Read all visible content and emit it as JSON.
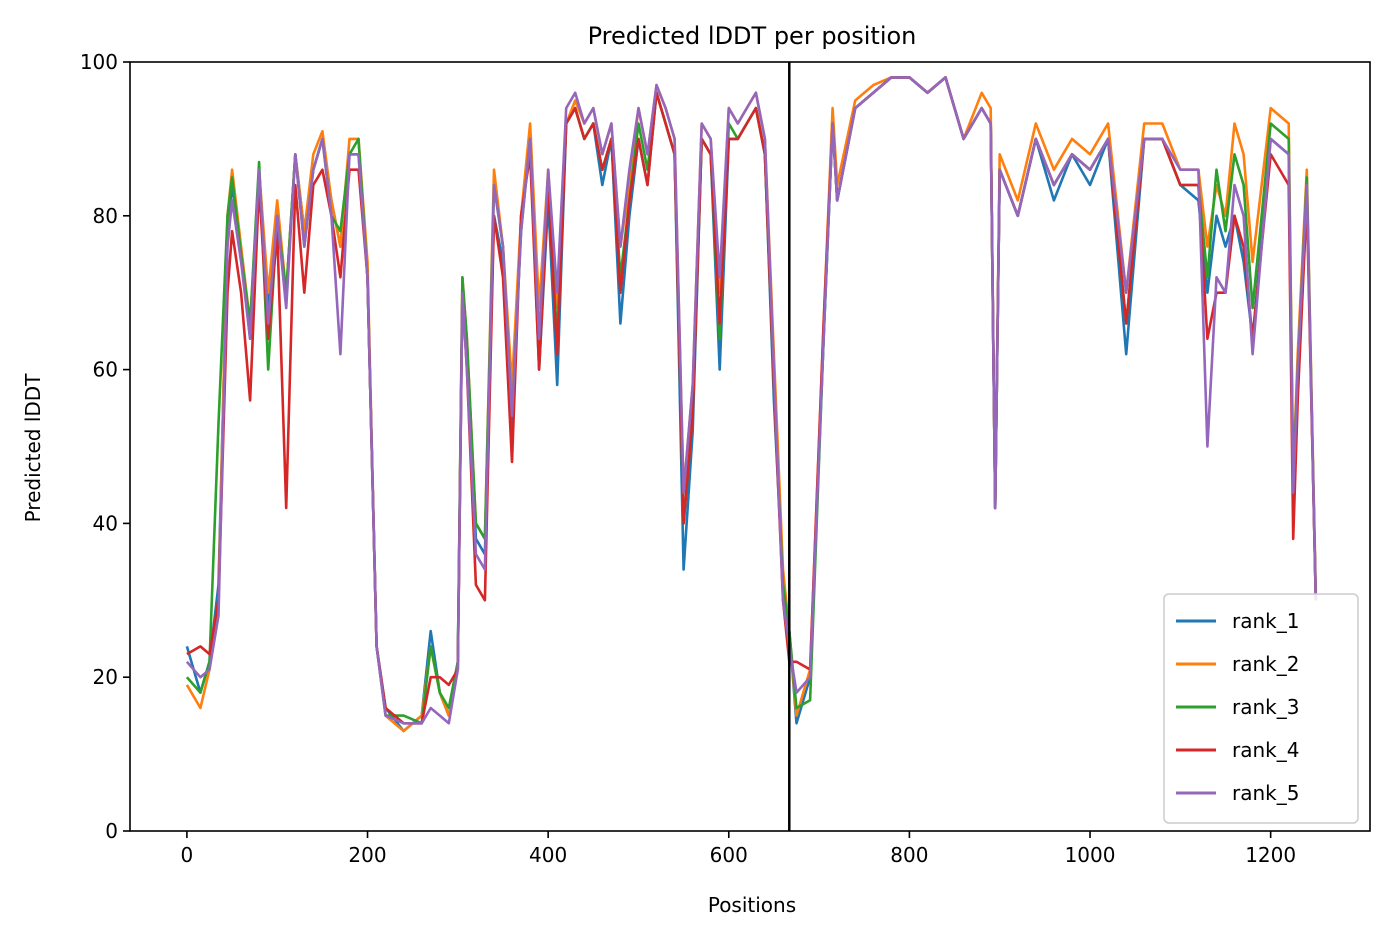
{
  "chart_data": {
    "type": "line",
    "title": "Predicted lDDT per position",
    "xlabel": "Positions",
    "ylabel": "Predicted lDDT",
    "xlim": [
      -63,
      1310
    ],
    "ylim": [
      0,
      100
    ],
    "xticks": [
      0,
      200,
      400,
      600,
      800,
      1000,
      1200
    ],
    "yticks": [
      0,
      20,
      40,
      60,
      80,
      100
    ],
    "grid": false,
    "legend": "bottom-right",
    "vline_x": 667,
    "x": [
      0,
      15,
      25,
      35,
      45,
      50,
      60,
      70,
      80,
      90,
      100,
      110,
      120,
      130,
      140,
      150,
      160,
      170,
      180,
      190,
      200,
      210,
      220,
      240,
      260,
      270,
      280,
      290,
      300,
      305,
      310,
      320,
      330,
      340,
      350,
      360,
      370,
      380,
      390,
      400,
      410,
      420,
      430,
      440,
      450,
      460,
      470,
      480,
      490,
      500,
      510,
      520,
      530,
      540,
      550,
      560,
      570,
      580,
      590,
      600,
      610,
      620,
      630,
      640,
      650,
      660,
      667,
      675,
      690,
      705,
      715,
      720,
      740,
      760,
      780,
      800,
      820,
      840,
      860,
      880,
      890,
      895,
      900,
      920,
      940,
      960,
      980,
      1000,
      1020,
      1040,
      1060,
      1080,
      1100,
      1120,
      1130,
      1140,
      1150,
      1160,
      1170,
      1180,
      1200,
      1220,
      1225,
      1230,
      1240,
      1250
    ],
    "series": [
      {
        "name": "rank_1",
        "color": "#1f77b4",
        "values": [
          24,
          18,
          22,
          32,
          78,
          84,
          75,
          64,
          86,
          68,
          80,
          70,
          88,
          78,
          86,
          90,
          82,
          76,
          88,
          88,
          72,
          24,
          16,
          13,
          15,
          26,
          18,
          15,
          22,
          70,
          62,
          38,
          36,
          80,
          74,
          52,
          80,
          90,
          60,
          82,
          58,
          92,
          94,
          90,
          92,
          84,
          90,
          66,
          80,
          90,
          84,
          96,
          92,
          88,
          34,
          52,
          90,
          88,
          60,
          90,
          90,
          92,
          94,
          88,
          56,
          32,
          26,
          14,
          20,
          64,
          92,
          82,
          94,
          96,
          98,
          98,
          96,
          98,
          90,
          94,
          92,
          42,
          86,
          80,
          90,
          82,
          88,
          84,
          90,
          62,
          90,
          90,
          84,
          82,
          70,
          80,
          76,
          80,
          74,
          64,
          90,
          88,
          44,
          60,
          84,
          30
        ]
      },
      {
        "name": "rank_2",
        "color": "#ff7f0e",
        "values": [
          19,
          16,
          21,
          30,
          80,
          86,
          76,
          66,
          86,
          70,
          82,
          70,
          88,
          78,
          88,
          91,
          82,
          76,
          90,
          90,
          74,
          24,
          15,
          13,
          15,
          24,
          18,
          15,
          21,
          72,
          64,
          40,
          38,
          86,
          76,
          58,
          80,
          92,
          68,
          86,
          68,
          92,
          95,
          92,
          94,
          88,
          92,
          76,
          84,
          94,
          88,
          97,
          94,
          90,
          44,
          58,
          92,
          90,
          70,
          94,
          92,
          94,
          96,
          90,
          62,
          34,
          26,
          15,
          21,
          66,
          94,
          84,
          95,
          97,
          98,
          98,
          96,
          98,
          90,
          96,
          94,
          42,
          88,
          82,
          92,
          86,
          90,
          88,
          92,
          70,
          92,
          92,
          86,
          86,
          76,
          84,
          80,
          92,
          88,
          74,
          94,
          92,
          46,
          62,
          86,
          31
        ]
      },
      {
        "name": "rank_3",
        "color": "#2ca02c",
        "values": [
          20,
          18,
          22,
          53,
          80,
          85,
          75,
          66,
          87,
          60,
          80,
          70,
          88,
          76,
          86,
          90,
          80,
          78,
          88,
          90,
          72,
          24,
          15,
          15,
          14,
          24,
          18,
          16,
          22,
          72,
          64,
          40,
          38,
          84,
          76,
          54,
          78,
          90,
          62,
          84,
          64,
          92,
          94,
          90,
          92,
          86,
          90,
          72,
          82,
          92,
          86,
          96,
          92,
          88,
          40,
          54,
          90,
          88,
          64,
          92,
          90,
          92,
          94,
          88,
          58,
          32,
          26,
          16,
          17,
          64,
          92,
          82,
          94,
          96,
          98,
          98,
          96,
          98,
          90,
          94,
          92,
          42,
          86,
          80,
          90,
          84,
          88,
          86,
          90,
          66,
          90,
          90,
          84,
          84,
          72,
          86,
          78,
          88,
          84,
          68,
          92,
          90,
          46,
          60,
          85,
          30
        ]
      },
      {
        "name": "rank_4",
        "color": "#d62728",
        "values": [
          23,
          24,
          23,
          30,
          70,
          78,
          70,
          56,
          84,
          64,
          78,
          42,
          84,
          70,
          84,
          86,
          80,
          72,
          86,
          86,
          72,
          24,
          16,
          14,
          14,
          20,
          20,
          19,
          21,
          70,
          60,
          32,
          30,
          80,
          72,
          48,
          80,
          88,
          60,
          84,
          62,
          92,
          94,
          90,
          92,
          86,
          90,
          70,
          82,
          90,
          84,
          96,
          92,
          88,
          40,
          54,
          90,
          88,
          66,
          90,
          90,
          92,
          94,
          88,
          58,
          30,
          22,
          22,
          21,
          66,
          92,
          82,
          94,
          96,
          98,
          98,
          96,
          98,
          90,
          94,
          92,
          42,
          86,
          80,
          90,
          84,
          88,
          86,
          90,
          66,
          90,
          90,
          84,
          84,
          64,
          70,
          70,
          80,
          76,
          64,
          88,
          84,
          38,
          56,
          82,
          30
        ]
      },
      {
        "name": "rank_5",
        "color": "#9467bd",
        "values": [
          22,
          20,
          21,
          28,
          76,
          82,
          74,
          64,
          86,
          66,
          80,
          68,
          88,
          76,
          86,
          90,
          80,
          62,
          88,
          88,
          72,
          24,
          15,
          14,
          14,
          16,
          15,
          14,
          21,
          70,
          60,
          36,
          34,
          84,
          76,
          54,
          78,
          90,
          64,
          86,
          70,
          94,
          96,
          92,
          94,
          88,
          92,
          76,
          86,
          94,
          88,
          97,
          94,
          90,
          44,
          58,
          92,
          90,
          72,
          94,
          92,
          94,
          96,
          90,
          60,
          30,
          24,
          18,
          20,
          64,
          92,
          82,
          94,
          96,
          98,
          98,
          96,
          98,
          90,
          94,
          92,
          42,
          86,
          80,
          90,
          84,
          88,
          86,
          90,
          70,
          90,
          90,
          86,
          86,
          50,
          72,
          70,
          84,
          80,
          62,
          90,
          88,
          44,
          60,
          84,
          30
        ]
      }
    ]
  }
}
